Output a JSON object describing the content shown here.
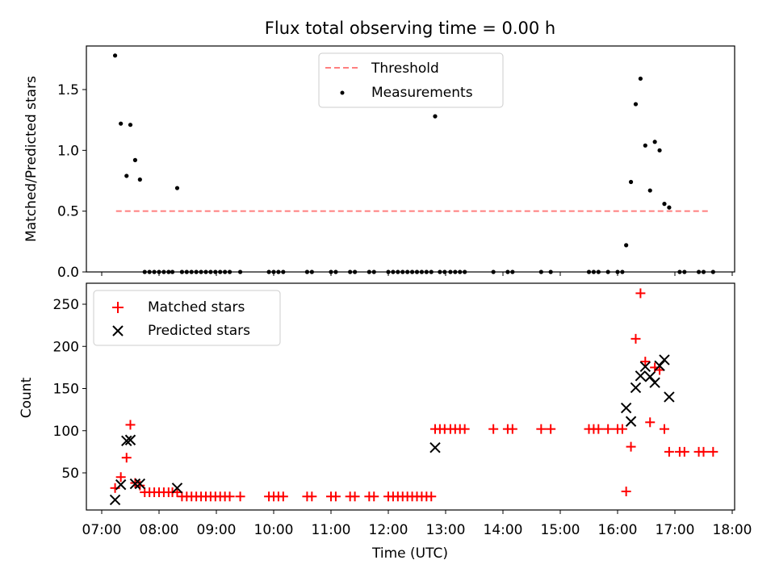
{
  "chart_data": [
    {
      "type": "scatter",
      "title": "Flux total observing time = 0.00 h",
      "ylabel": "Matched/Predicted stars",
      "xlabel": "",
      "xlim": [
        "07:00",
        "18:00"
      ],
      "ylim": [
        0,
        1.85
      ],
      "yticks": [
        0.0,
        0.5,
        1.0,
        1.5
      ],
      "ytick_labels": [
        "0.0",
        "0.5",
        "1.0",
        "1.5"
      ],
      "legend_position": "top-center",
      "threshold": {
        "name": "Threshold",
        "value": 0.5,
        "x_start": "07:15",
        "x_end": "17:35",
        "color": "#ff7f7f",
        "style": "dashed"
      },
      "series": [
        {
          "name": "Measurements",
          "color": "#000000",
          "marker": "dot",
          "x": [
            "07:14",
            "07:20",
            "07:26",
            "07:30",
            "07:35",
            "07:40",
            "08:19",
            "12:49",
            "16:09",
            "16:14",
            "16:19",
            "16:24",
            "16:29",
            "16:34",
            "16:39",
            "16:44",
            "16:49",
            "16:54",
            "07:45",
            "07:50",
            "07:55",
            "08:00",
            "08:05",
            "08:10",
            "08:14",
            "08:24",
            "08:29",
            "08:34",
            "08:39",
            "08:44",
            "08:49",
            "08:54",
            "08:59",
            "09:04",
            "09:09",
            "09:14",
            "09:25",
            "09:55",
            "10:00",
            "10:05",
            "10:10",
            "10:35",
            "10:40",
            "11:00",
            "11:05",
            "11:20",
            "11:25",
            "11:40",
            "11:45",
            "12:00",
            "12:05",
            "12:10",
            "12:15",
            "12:20",
            "12:25",
            "12:30",
            "12:35",
            "12:40",
            "12:45",
            "12:54",
            "12:59",
            "13:05",
            "13:10",
            "13:15",
            "13:20",
            "13:50",
            "14:05",
            "14:10",
            "14:40",
            "14:50",
            "15:30",
            "15:35",
            "15:40",
            "15:50",
            "16:00",
            "16:05",
            "17:05",
            "17:10",
            "17:25",
            "17:30",
            "17:40"
          ],
          "y": [
            1.78,
            1.22,
            0.79,
            1.21,
            0.92,
            0.76,
            0.69,
            1.28,
            0.22,
            0.74,
            1.38,
            1.59,
            1.04,
            0.67,
            1.07,
            1.0,
            0.56,
            0.53,
            0,
            0,
            0,
            0,
            0,
            0,
            0,
            0,
            0,
            0,
            0,
            0,
            0,
            0,
            0,
            0,
            0,
            0,
            0,
            0,
            0,
            0,
            0,
            0,
            0,
            0,
            0,
            0,
            0,
            0,
            0,
            0,
            0,
            0,
            0,
            0,
            0,
            0,
            0,
            0,
            0,
            0,
            0,
            0,
            0,
            0,
            0,
            0,
            0,
            0,
            0,
            0,
            0,
            0,
            0,
            0,
            0,
            0,
            0,
            0,
            0,
            0,
            0
          ]
        }
      ]
    },
    {
      "type": "scatter",
      "title": "",
      "ylabel": "Count",
      "xlabel": "Time (UTC)",
      "xlim": [
        "07:00",
        "18:00"
      ],
      "xtick_labels": [
        "07:00",
        "08:00",
        "09:00",
        "10:00",
        "11:00",
        "12:00",
        "13:00",
        "14:00",
        "15:00",
        "16:00",
        "17:00",
        "18:00"
      ],
      "ylim": [
        14,
        278
      ],
      "yticks": [
        50,
        100,
        150,
        200,
        250
      ],
      "ytick_labels": [
        "50",
        "100",
        "150",
        "200",
        "250"
      ],
      "legend_position": "top-left",
      "series": [
        {
          "name": "Matched stars",
          "color": "#ff0000",
          "marker": "plus",
          "x": [
            "07:14",
            "07:20",
            "07:26",
            "07:30",
            "07:35",
            "07:40",
            "07:45",
            "07:50",
            "07:55",
            "08:00",
            "08:05",
            "08:10",
            "08:14",
            "08:19",
            "08:24",
            "08:29",
            "08:34",
            "08:39",
            "08:44",
            "08:49",
            "08:54",
            "08:59",
            "09:04",
            "09:09",
            "09:14",
            "09:25",
            "09:55",
            "10:00",
            "10:05",
            "10:10",
            "10:35",
            "10:40",
            "11:00",
            "11:05",
            "11:20",
            "11:25",
            "11:40",
            "11:45",
            "12:00",
            "12:05",
            "12:10",
            "12:15",
            "12:20",
            "12:25",
            "12:30",
            "12:35",
            "12:40",
            "12:45",
            "12:49",
            "12:54",
            "12:59",
            "13:05",
            "13:10",
            "13:15",
            "13:20",
            "13:50",
            "14:05",
            "14:10",
            "14:40",
            "14:50",
            "15:30",
            "15:35",
            "15:40",
            "15:50",
            "16:00",
            "16:05",
            "16:09",
            "16:14",
            "16:19",
            "16:24",
            "16:29",
            "16:34",
            "16:39",
            "16:44",
            "16:49",
            "16:54",
            "17:05",
            "17:10",
            "17:25",
            "17:30",
            "17:40"
          ],
          "y": [
            32,
            45,
            68,
            107,
            38,
            35,
            27,
            27,
            27,
            27,
            27,
            27,
            27,
            27,
            22,
            22,
            22,
            22,
            22,
            22,
            22,
            22,
            22,
            22,
            22,
            22,
            22,
            22,
            22,
            22,
            22,
            22,
            22,
            22,
            22,
            22,
            22,
            22,
            22,
            22,
            22,
            22,
            22,
            22,
            22,
            22,
            22,
            22,
            102,
            102,
            102,
            102,
            102,
            102,
            102,
            102,
            102,
            102,
            102,
            102,
            102,
            102,
            102,
            102,
            102,
            102,
            28,
            81,
            209,
            263,
            182,
            110,
            175,
            172,
            102,
            75,
            75,
            75,
            75,
            75,
            75
          ]
        },
        {
          "name": "Predicted stars",
          "color": "#000000",
          "marker": "x",
          "x": [
            "07:14",
            "07:20",
            "07:26",
            "07:30",
            "07:35",
            "07:40",
            "08:19",
            "12:49",
            "16:09",
            "16:14",
            "16:19",
            "16:24",
            "16:29",
            "16:34",
            "16:39",
            "16:44",
            "16:49",
            "16:54"
          ],
          "y": [
            18,
            36,
            88,
            89,
            37,
            37,
            32,
            80,
            127,
            111,
            151,
            165,
            176,
            164,
            157,
            177,
            184,
            140
          ]
        }
      ]
    }
  ]
}
